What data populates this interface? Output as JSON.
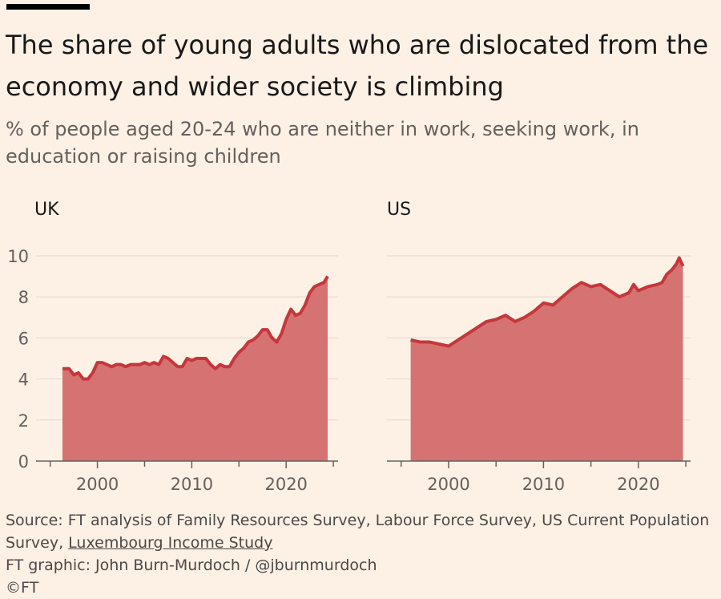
{
  "title": "The share of young adults who are dislocated from the economy and wider society is climbing",
  "subtitle": "% of people aged 20-24 who are neither in work, seeking work, in education or raising children",
  "colors": {
    "background": "#fdf1e6",
    "line": "#c5373b",
    "area": "#d36c6c",
    "axis": "#66605c",
    "grid": "#e3d7cc"
  },
  "footer": {
    "source_prefix": "Source: FT analysis of Family Resources Survey, Labour Force Survey, US Current Population Survey, ",
    "source_link": "Luxembourg Income Study",
    "credit": "FT graphic: John Burn-Murdoch / @jburnmurdoch",
    "copyright": "©FT"
  },
  "chart_data": [
    {
      "type": "area",
      "panel_title": "UK",
      "xlim": [
        1993.5,
        2025.5
      ],
      "ylim": [
        0,
        10
      ],
      "yticks": [
        "0",
        "2",
        "4",
        "6",
        "8",
        "10"
      ],
      "xticks": [
        "2000",
        "2010",
        "2020"
      ],
      "grid": true,
      "series": [
        {
          "x": [
            1996.3,
            1997.0,
            1997.5,
            1998.0,
            1998.5,
            1999.0,
            1999.5,
            2000.0,
            2000.5,
            2001.0,
            2001.5,
            2002.0,
            2002.5,
            2003.0,
            2003.5,
            2004.0,
            2004.5,
            2005.0,
            2005.5,
            2006.0,
            2006.5,
            2007.0,
            2007.5,
            2008.0,
            2008.5,
            2009.0,
            2009.5,
            2010.0,
            2010.5,
            2011.0,
            2011.5,
            2012.0,
            2012.5,
            2013.0,
            2013.5,
            2014.0,
            2014.5,
            2015.0,
            2015.5,
            2016.0,
            2016.5,
            2017.0,
            2017.5,
            2018.0,
            2018.5,
            2019.0,
            2019.5,
            2020.0,
            2020.5,
            2021.0,
            2021.5,
            2022.0,
            2022.5,
            2023.0,
            2023.5,
            2024.0,
            2024.4
          ],
          "values": [
            4.5,
            4.5,
            4.2,
            4.3,
            4.0,
            4.0,
            4.3,
            4.8,
            4.8,
            4.7,
            4.6,
            4.7,
            4.7,
            4.6,
            4.7,
            4.7,
            4.7,
            4.8,
            4.7,
            4.8,
            4.7,
            5.1,
            5.0,
            4.8,
            4.6,
            4.6,
            5.0,
            4.9,
            5.0,
            5.0,
            5.0,
            4.7,
            4.5,
            4.7,
            4.6,
            4.6,
            5.0,
            5.3,
            5.5,
            5.8,
            5.9,
            6.1,
            6.4,
            6.4,
            6.0,
            5.8,
            6.2,
            6.9,
            7.4,
            7.1,
            7.2,
            7.6,
            8.2,
            8.5,
            8.6,
            8.7,
            9.0
          ]
        }
      ]
    },
    {
      "type": "area",
      "panel_title": "US",
      "xlim": [
        1993.5,
        2025.5
      ],
      "ylim": [
        0,
        10
      ],
      "xticks": [
        "2000",
        "2010",
        "2020"
      ],
      "grid": true,
      "series": [
        {
          "x": [
            1996.0,
            1997.0,
            1998.0,
            1999.0,
            2000.0,
            2001.0,
            2002.0,
            2003.0,
            2004.0,
            2005.0,
            2006.0,
            2007.0,
            2008.0,
            2009.0,
            2010.0,
            2011.0,
            2012.0,
            2013.0,
            2014.0,
            2015.0,
            2016.0,
            2017.0,
            2018.0,
            2019.0,
            2019.5,
            2020.0,
            2021.0,
            2022.0,
            2022.5,
            2023.0,
            2023.5,
            2024.0,
            2024.3,
            2024.7
          ],
          "values": [
            5.9,
            5.8,
            5.8,
            5.7,
            5.6,
            5.9,
            6.2,
            6.5,
            6.8,
            6.9,
            7.1,
            6.8,
            7.0,
            7.3,
            7.7,
            7.6,
            8.0,
            8.4,
            8.7,
            8.5,
            8.6,
            8.3,
            8.0,
            8.2,
            8.6,
            8.3,
            8.5,
            8.6,
            8.7,
            9.1,
            9.3,
            9.6,
            9.9,
            9.5
          ]
        }
      ]
    }
  ]
}
